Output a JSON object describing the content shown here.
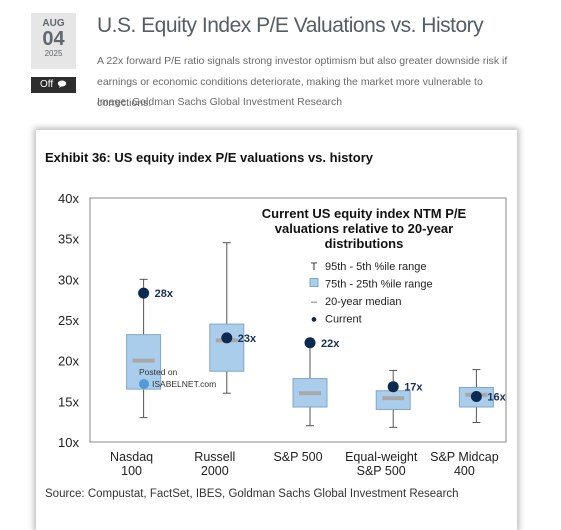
{
  "post": {
    "date": {
      "month": "AUG",
      "day": "04",
      "year": "2025"
    },
    "comments_label": "Off",
    "title": "U.S. Equity Index P/E Valuations vs. History",
    "description": "A 22x forward P/E ratio signals strong investor optimism but also greater downside risk if earnings or economic conditions deteriorate, making the market more vulnerable to corrections.",
    "image_credit": "Image: Goldman Sachs Global Investment Research",
    "icons": {
      "comments": "speech-bubble-icon"
    }
  },
  "exhibit": {
    "title": "Exhibit 36: US equity index P/E valuations vs. history",
    "source": "Source: Compustat, FactSet, IBES, Goldman Sachs Global Investment Research",
    "watermark": {
      "line1": "Posted on",
      "line2": "ISABELNET.com"
    }
  },
  "chart_data": {
    "type": "boxplot",
    "title": "Current US equity index NTM P/E valuations relative to 20-year distributions",
    "title_lines": [
      "Current US equity index NTM P/E",
      "valuations relative to 20-year",
      "distributions"
    ],
    "ylim": [
      10,
      40
    ],
    "yticks": [
      "10x",
      "15x",
      "20x",
      "25x",
      "30x",
      "35x",
      "40x"
    ],
    "legend": [
      "95th - 5th %ile range",
      "75th - 25th %ile range",
      "20-year median",
      "Current"
    ],
    "legend_symbols": [
      "T",
      "",
      "–",
      "●"
    ],
    "legend_position": "top-right",
    "grid": false,
    "colors": {
      "box": "#a9cdea",
      "box_border": "#7fa7cc",
      "median": "#a8a8a8",
      "dot": "#0b2a52",
      "whisker": "#555555"
    },
    "categories": [
      {
        "label": [
          "Nasdaq",
          "100"
        ],
        "p5": 13,
        "p25": 16.5,
        "median": 20,
        "p75": 23.2,
        "p95": 30,
        "current": 28.3,
        "current_label": "28x"
      },
      {
        "label": [
          "Russell",
          "2000"
        ],
        "p5": 16,
        "p25": 18.7,
        "median": 22.5,
        "p75": 24.5,
        "p95": 34.5,
        "current": 22.8,
        "current_label": "23x"
      },
      {
        "label": [
          "S&P 500"
        ],
        "p5": 12,
        "p25": 14.3,
        "median": 16,
        "p75": 17.8,
        "p95": 22.5,
        "current": 22.2,
        "current_label": "22x"
      },
      {
        "label": [
          "Equal-weight",
          "S&P 500"
        ],
        "p5": 11.8,
        "p25": 14,
        "median": 15.4,
        "p75": 16.3,
        "p95": 18.8,
        "current": 16.8,
        "current_label": "17x"
      },
      {
        "label": [
          "S&P Midcap",
          "400"
        ],
        "p5": 12.4,
        "p25": 14.3,
        "median": 15.8,
        "p75": 16.7,
        "p95": 18.9,
        "current": 15.6,
        "current_label": "16x"
      }
    ]
  }
}
